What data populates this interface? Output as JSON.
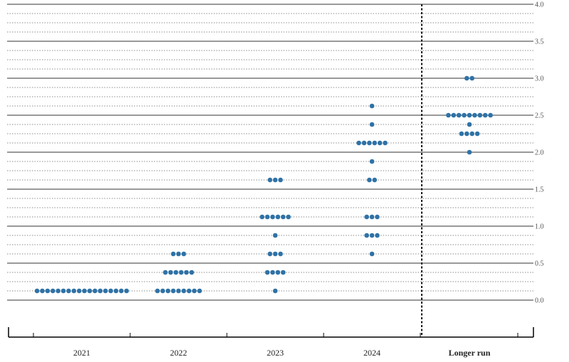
{
  "chart_data": {
    "type": "scatter",
    "title": "",
    "xlabel": "",
    "ylabel": "",
    "ylim": [
      0,
      4
    ],
    "y_ticks": [
      "0.0",
      "0.5",
      "1.0",
      "1.5",
      "2.0",
      "2.5",
      "3.0",
      "3.5",
      "4.0"
    ],
    "grid": "dotted at every 0.125, solid at every 0.5",
    "categories": [
      "2021",
      "2022",
      "2023",
      "2024",
      "Longer run"
    ],
    "dot_color": "#2f72a6",
    "dots": [
      {
        "category": "2021",
        "counts": [
          {
            "y": 0.125,
            "n": 18
          }
        ]
      },
      {
        "category": "2022",
        "counts": [
          {
            "y": 0.125,
            "n": 9
          },
          {
            "y": 0.375,
            "n": 6
          },
          {
            "y": 0.625,
            "n": 3
          }
        ]
      },
      {
        "category": "2023",
        "counts": [
          {
            "y": 0.125,
            "n": 1
          },
          {
            "y": 0.375,
            "n": 4
          },
          {
            "y": 0.625,
            "n": 3
          },
          {
            "y": 0.875,
            "n": 1
          },
          {
            "y": 1.125,
            "n": 6
          },
          {
            "y": 1.625,
            "n": 3
          }
        ]
      },
      {
        "category": "2024",
        "counts": [
          {
            "y": 0.625,
            "n": 1
          },
          {
            "y": 0.875,
            "n": 3
          },
          {
            "y": 1.125,
            "n": 3
          },
          {
            "y": 1.625,
            "n": 2
          },
          {
            "y": 1.875,
            "n": 1
          },
          {
            "y": 2.125,
            "n": 6
          },
          {
            "y": 2.375,
            "n": 1
          },
          {
            "y": 2.625,
            "n": 1
          }
        ]
      },
      {
        "category": "Longer run",
        "counts": [
          {
            "y": 2.0,
            "n": 1
          },
          {
            "y": 2.25,
            "n": 4
          },
          {
            "y": 2.375,
            "n": 1
          },
          {
            "y": 2.5,
            "n": 9
          },
          {
            "y": 3.0,
            "n": 2
          }
        ]
      }
    ]
  }
}
